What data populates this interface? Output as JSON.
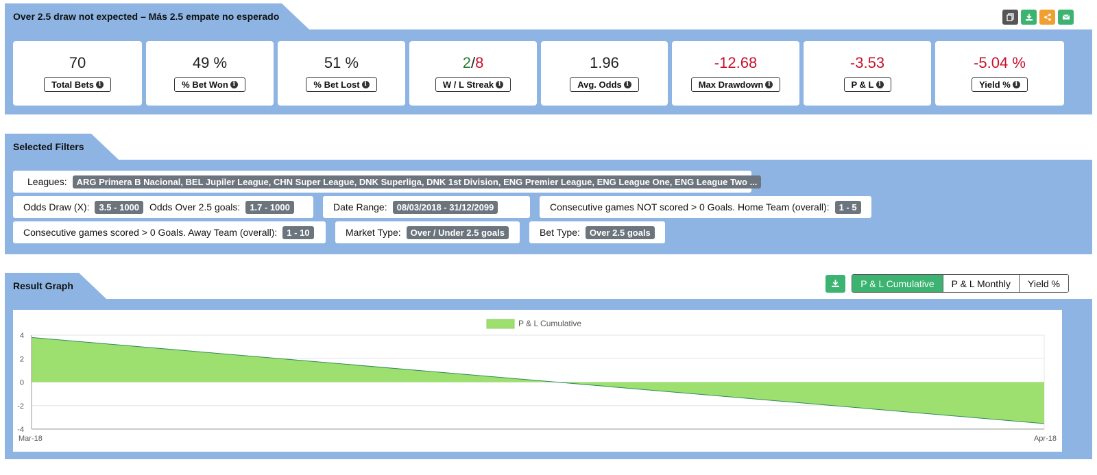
{
  "header": {
    "title": "Over 2.5 draw not expected – Más 2.5 empate no esperado",
    "actions": [
      {
        "icon": "copy-icon",
        "color": "#555555"
      },
      {
        "icon": "download-icon",
        "color": "#3cb371"
      },
      {
        "icon": "share-icon",
        "color": "#f0a030"
      },
      {
        "icon": "email-icon",
        "color": "#3cb371"
      }
    ]
  },
  "stats": [
    {
      "value": "70",
      "label": "Total Bets"
    },
    {
      "value": "49 %",
      "label": "% Bet Won"
    },
    {
      "value": "51 %",
      "label": "% Bet Lost"
    },
    {
      "value_win": "2",
      "sep": "/",
      "value_loss": "8",
      "label": "W / L Streak"
    },
    {
      "value": "1.96",
      "label": "Avg. Odds"
    },
    {
      "value": "-12.68",
      "label": "Max Drawdown"
    },
    {
      "value": "-3.53",
      "label": "P & L"
    },
    {
      "value": "-5.04 %",
      "label": "Yield %"
    }
  ],
  "filters": {
    "title": "Selected Filters",
    "leagues_label": "Leagues:",
    "leagues_value": "ARG Primera B Nacional, BEL Jupiler League, CHN Super League, DNK Superliga, DNK 1st Division, ENG Premier League, ENG League One, ENG League Two ...",
    "odds_draw_label": "Odds Draw (X):",
    "odds_draw_value": "3.5 - 1000",
    "odds_over_label": "Odds Over 2.5 goals:",
    "odds_over_value": "1.7 - 1000",
    "date_range_label": "Date Range:",
    "date_range_value": "08/03/2018 - 31/12/2099",
    "consec_not_scored_label": "Consecutive games NOT scored > 0 Goals. Home Team (overall):",
    "consec_not_scored_value": "1 - 5",
    "consec_scored_label": "Consecutive games scored > 0 Goals. Away Team (overall):",
    "consec_scored_value": "1 - 10",
    "market_type_label": "Market Type:",
    "market_type_value": "Over / Under 2.5 goals",
    "bet_type_label": "Bet Type:",
    "bet_type_value": "Over 2.5 goals"
  },
  "graph": {
    "title": "Result Graph",
    "tabs": [
      "P & L Cumulative",
      "P & L Monthly",
      "Yield %"
    ],
    "active_tab": 0
  },
  "chart_data": {
    "type": "area",
    "legend": "P & L Cumulative",
    "legend_position": "top-center",
    "fill_color": "#9de070",
    "line_color": "#2e8b57",
    "x": [
      "Mar-18",
      "Apr-18"
    ],
    "values": [
      3.8,
      -3.53
    ],
    "yticks": [
      4,
      2,
      0,
      -2,
      -4
    ],
    "ylim": [
      -4,
      4
    ],
    "grid": true
  }
}
